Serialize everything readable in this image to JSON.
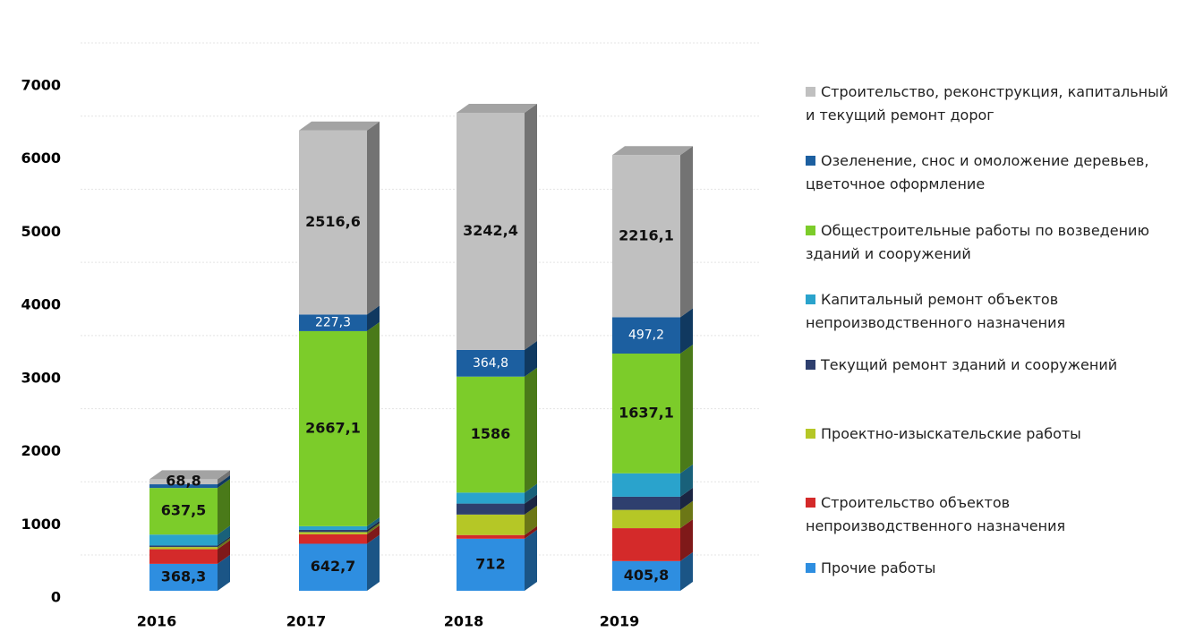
{
  "chart_data": {
    "type": "bar",
    "stacked": true,
    "categories": [
      "2016",
      "2017",
      "2018",
      "2019"
    ],
    "series": [
      {
        "name": "Прочие работы",
        "color": "#2e8ee0",
        "values": [
          368.3,
          642.7,
          712,
          405.8
        ],
        "value_labels": [
          "368,3",
          "642,7",
          "712",
          "405,8"
        ]
      },
      {
        "name": "Строительство объектов непроизводственного назначения",
        "color": "#d42a2a",
        "values": [
          200,
          130,
          50,
          450
        ],
        "value_labels": [
          null,
          null,
          null,
          null
        ]
      },
      {
        "name": "Проектно-изыскательские работы",
        "color": "#b5c726",
        "values": [
          30,
          30,
          280,
          250
        ],
        "value_labels": [
          null,
          null,
          null,
          null
        ]
      },
      {
        "name": "Текущий ремонт зданий и сооружений",
        "color": "#2e3f6e",
        "values": [
          20,
          30,
          150,
          180
        ],
        "value_labels": [
          null,
          null,
          null,
          null
        ]
      },
      {
        "name": "Капитальный ремонт  объектов непроизводственного назначения",
        "color": "#2aa3cc",
        "values": [
          150,
          50,
          150,
          320
        ],
        "value_labels": [
          null,
          null,
          null,
          null
        ]
      },
      {
        "name": "Общестроительные работы по возведению зданий и сооружений",
        "color": "#7ccc2a",
        "values": [
          637.5,
          2667.1,
          1586,
          1637.1
        ],
        "value_labels": [
          "637,5",
          "2667,1",
          "1586",
          "1637,1"
        ]
      },
      {
        "name": "Озеленение, снос и омоложение деревьев, цветочное оформление",
        "color": "#1c5fa0",
        "values": [
          50,
          227.3,
          364.8,
          497.2
        ],
        "value_labels": [
          null,
          "227,3",
          "364,8",
          "497,2"
        ]
      },
      {
        "name": "Строительство, реконструкция, капитальный и текущий ремонт дорог",
        "color": "#c0c0c0",
        "values": [
          68.8,
          2516.6,
          3242.4,
          2216.1
        ],
        "value_labels": [
          "68,8",
          "2516,6",
          "3242,4",
          "2216,1"
        ]
      }
    ],
    "ylim": [
      0,
      7000
    ],
    "yticks": [
      0,
      1000,
      2000,
      3000,
      4000,
      5000,
      6000,
      7000
    ],
    "grid": true,
    "legend": "right"
  }
}
